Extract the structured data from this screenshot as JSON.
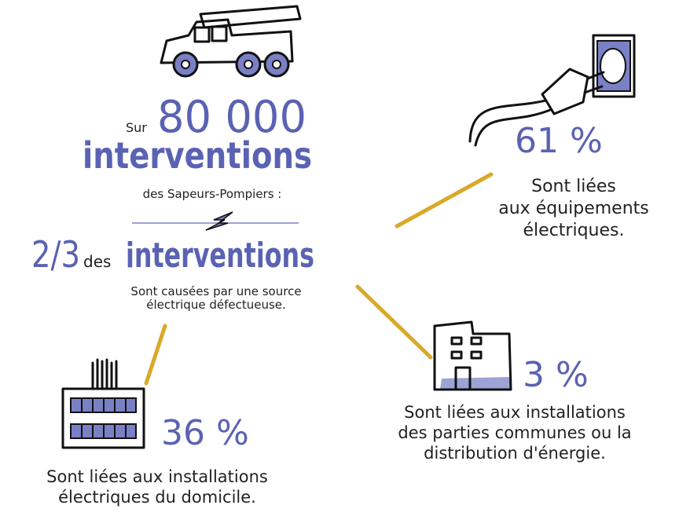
{
  "headline": {
    "prefix": "Sur",
    "number": "80 000",
    "word": "interventions",
    "source": "des Sapeurs-Pompiers :"
  },
  "fraction": {
    "value": "2/3",
    "connector": "des",
    "word": "interventions",
    "caption": [
      "Sont causées par une source",
      "électrique défectueuse."
    ]
  },
  "breakdown": [
    {
      "percent": "61 %",
      "caption": [
        "Sont liées",
        "aux équipements",
        "électriques."
      ]
    },
    {
      "percent": "3 %",
      "caption": [
        "Sont liées aux installations",
        "des parties communes ou la",
        "distribution d'énergie."
      ]
    },
    {
      "percent": "36 %",
      "caption": [
        "Sont liées aux installations",
        "électriques du domicile."
      ]
    }
  ]
}
